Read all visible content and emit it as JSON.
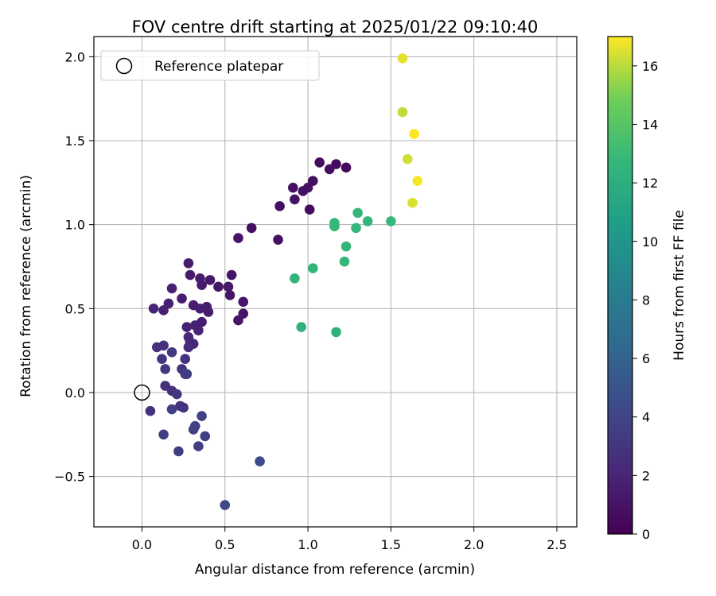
{
  "chart_data": {
    "type": "scatter",
    "title": "FOV centre drift starting at 2025/01/22 09:10:40",
    "xlabel": "Angular distance from reference (arcmin)",
    "ylabel": "Rotation from reference (arcmin)",
    "xlim": [
      -0.29,
      2.62
    ],
    "ylim": [
      -0.8,
      2.12
    ],
    "xticks": [
      0.0,
      0.5,
      1.0,
      1.5,
      2.0,
      2.5
    ],
    "xtick_labels": [
      "0.0",
      "0.5",
      "1.0",
      "1.5",
      "2.0",
      "2.5"
    ],
    "yticks": [
      -0.5,
      0.0,
      0.5,
      1.0,
      1.5,
      2.0
    ],
    "ytick_labels": [
      "−0.5",
      "0.0",
      "0.5",
      "1.0",
      "1.5",
      "2.0"
    ],
    "grid": true,
    "legend": {
      "placement": "top-left",
      "entries": [
        "Reference platepar"
      ]
    },
    "reference_point": {
      "x": 0.0,
      "y": 0.0,
      "label": "Reference platepar"
    },
    "colorbar": {
      "label": "Hours from first FF file",
      "colormap": "viridis",
      "range": [
        0,
        17
      ],
      "ticks": [
        0,
        2,
        4,
        6,
        8,
        10,
        12,
        14,
        16
      ],
      "tick_labels": [
        "0",
        "2",
        "4",
        "6",
        "8",
        "10",
        "12",
        "14",
        "16"
      ]
    },
    "points": [
      {
        "x": 1.07,
        "y": 1.37,
        "h": 0.6
      },
      {
        "x": 1.17,
        "y": 1.36,
        "h": 0.5
      },
      {
        "x": 1.23,
        "y": 1.34,
        "h": 0.4
      },
      {
        "x": 1.13,
        "y": 1.33,
        "h": 0.7
      },
      {
        "x": 1.03,
        "y": 1.26,
        "h": 0.7
      },
      {
        "x": 0.91,
        "y": 1.22,
        "h": 0.8
      },
      {
        "x": 1.0,
        "y": 1.22,
        "h": 0.9
      },
      {
        "x": 0.97,
        "y": 1.2,
        "h": 0.8
      },
      {
        "x": 0.92,
        "y": 1.15,
        "h": 0.9
      },
      {
        "x": 0.83,
        "y": 1.11,
        "h": 0.7
      },
      {
        "x": 1.01,
        "y": 1.09,
        "h": 0.6
      },
      {
        "x": 0.66,
        "y": 0.98,
        "h": 0.8
      },
      {
        "x": 0.58,
        "y": 0.92,
        "h": 1.0
      },
      {
        "x": 0.82,
        "y": 0.91,
        "h": 0.8
      },
      {
        "x": 0.54,
        "y": 0.7,
        "h": 1.1
      },
      {
        "x": 0.28,
        "y": 0.77,
        "h": 1.4
      },
      {
        "x": 0.29,
        "y": 0.7,
        "h": 1.4
      },
      {
        "x": 0.35,
        "y": 0.68,
        "h": 1.5
      },
      {
        "x": 0.41,
        "y": 0.67,
        "h": 1.3
      },
      {
        "x": 0.36,
        "y": 0.64,
        "h": 1.4
      },
      {
        "x": 0.46,
        "y": 0.63,
        "h": 1.2
      },
      {
        "x": 0.52,
        "y": 0.63,
        "h": 1.3
      },
      {
        "x": 0.18,
        "y": 0.62,
        "h": 1.7
      },
      {
        "x": 0.24,
        "y": 0.56,
        "h": 1.6
      },
      {
        "x": 0.53,
        "y": 0.58,
        "h": 1.2
      },
      {
        "x": 0.61,
        "y": 0.54,
        "h": 1.1
      },
      {
        "x": 0.16,
        "y": 0.53,
        "h": 1.8
      },
      {
        "x": 0.31,
        "y": 0.52,
        "h": 1.6
      },
      {
        "x": 0.07,
        "y": 0.5,
        "h": 1.9
      },
      {
        "x": 0.13,
        "y": 0.49,
        "h": 1.8
      },
      {
        "x": 0.35,
        "y": 0.5,
        "h": 1.6
      },
      {
        "x": 0.39,
        "y": 0.51,
        "h": 1.5
      },
      {
        "x": 0.4,
        "y": 0.48,
        "h": 1.5
      },
      {
        "x": 0.61,
        "y": 0.47,
        "h": 1.1
      },
      {
        "x": 0.58,
        "y": 0.43,
        "h": 1.2
      },
      {
        "x": 0.36,
        "y": 0.42,
        "h": 1.6
      },
      {
        "x": 0.27,
        "y": 0.39,
        "h": 1.8
      },
      {
        "x": 0.32,
        "y": 0.4,
        "h": 1.8
      },
      {
        "x": 0.34,
        "y": 0.37,
        "h": 1.9
      },
      {
        "x": 0.28,
        "y": 0.33,
        "h": 2.2
      },
      {
        "x": 0.29,
        "y": 0.3,
        "h": 2.3
      },
      {
        "x": 0.31,
        "y": 0.29,
        "h": 2.1
      },
      {
        "x": 0.28,
        "y": 0.27,
        "h": 2.4
      },
      {
        "x": 0.09,
        "y": 0.27,
        "h": 2.8
      },
      {
        "x": 0.13,
        "y": 0.28,
        "h": 2.6
      },
      {
        "x": 0.18,
        "y": 0.24,
        "h": 3.2
      },
      {
        "x": 0.12,
        "y": 0.2,
        "h": 3.0
      },
      {
        "x": 0.26,
        "y": 0.2,
        "h": 2.6
      },
      {
        "x": 0.14,
        "y": 0.14,
        "h": 3.1
      },
      {
        "x": 0.24,
        "y": 0.14,
        "h": 2.9
      },
      {
        "x": 0.26,
        "y": 0.11,
        "h": 3.3
      },
      {
        "x": 0.27,
        "y": 0.11,
        "h": 3.4
      },
      {
        "x": 0.14,
        "y": 0.04,
        "h": 2.6
      },
      {
        "x": 0.18,
        "y": 0.01,
        "h": 2.7
      },
      {
        "x": 0.21,
        "y": -0.01,
        "h": 3.0
      },
      {
        "x": 0.05,
        "y": -0.11,
        "h": 2.7
      },
      {
        "x": 0.18,
        "y": -0.1,
        "h": 3.6
      },
      {
        "x": 0.23,
        "y": -0.08,
        "h": 2.9
      },
      {
        "x": 0.25,
        "y": -0.09,
        "h": 2.8
      },
      {
        "x": 0.36,
        "y": -0.14,
        "h": 3.8
      },
      {
        "x": 0.32,
        "y": -0.2,
        "h": 3.6
      },
      {
        "x": 0.31,
        "y": -0.22,
        "h": 3.8
      },
      {
        "x": 0.13,
        "y": -0.25,
        "h": 3.4
      },
      {
        "x": 0.38,
        "y": -0.26,
        "h": 3.6
      },
      {
        "x": 0.34,
        "y": -0.32,
        "h": 3.6
      },
      {
        "x": 0.22,
        "y": -0.35,
        "h": 3.5
      },
      {
        "x": 0.71,
        "y": -0.41,
        "h": 4.3
      },
      {
        "x": 0.5,
        "y": -0.67,
        "h": 4.2
      },
      {
        "x": 1.16,
        "y": 1.01,
        "h": 12.7
      },
      {
        "x": 1.16,
        "y": 0.99,
        "h": 12.8
      },
      {
        "x": 1.3,
        "y": 1.07,
        "h": 12.7
      },
      {
        "x": 1.36,
        "y": 1.02,
        "h": 12.6
      },
      {
        "x": 1.29,
        "y": 0.98,
        "h": 12.7
      },
      {
        "x": 1.5,
        "y": 1.02,
        "h": 12.8
      },
      {
        "x": 1.23,
        "y": 0.87,
        "h": 12.6
      },
      {
        "x": 1.22,
        "y": 0.78,
        "h": 12.7
      },
      {
        "x": 1.03,
        "y": 0.74,
        "h": 12.6
      },
      {
        "x": 0.92,
        "y": 0.68,
        "h": 12.4
      },
      {
        "x": 0.96,
        "y": 0.39,
        "h": 12.2
      },
      {
        "x": 1.17,
        "y": 0.36,
        "h": 12.2
      },
      {
        "x": 1.57,
        "y": 1.99,
        "h": 16.6
      },
      {
        "x": 1.57,
        "y": 1.67,
        "h": 16.1
      },
      {
        "x": 1.64,
        "y": 1.54,
        "h": 17.0
      },
      {
        "x": 1.6,
        "y": 1.39,
        "h": 16.3
      },
      {
        "x": 1.66,
        "y": 1.26,
        "h": 16.9
      },
      {
        "x": 1.63,
        "y": 1.13,
        "h": 16.5
      }
    ]
  }
}
